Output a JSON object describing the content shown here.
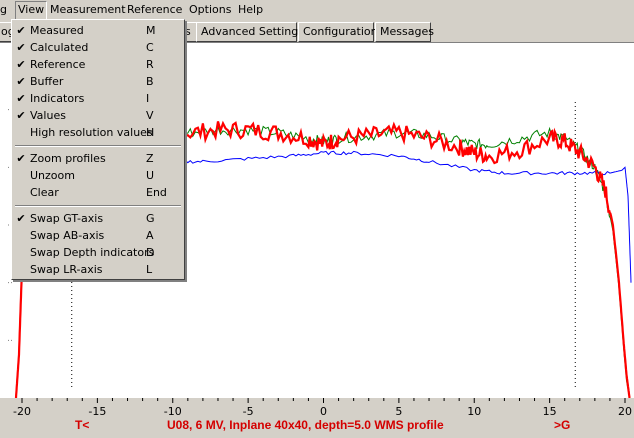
{
  "menubar": {
    "items": [
      {
        "label": "g"
      },
      {
        "label": "View"
      },
      {
        "label": "Measurement"
      },
      {
        "label": "Reference"
      },
      {
        "label": "Options"
      },
      {
        "label": "Help"
      }
    ]
  },
  "tabs": [
    {
      "label": "ogr"
    },
    {
      "label": "s"
    },
    {
      "label": "Advanced Settings"
    },
    {
      "label": "Configuration"
    },
    {
      "label": "Messages"
    }
  ],
  "view_menu": {
    "items": [
      {
        "label": "Measured",
        "shortcut": "M",
        "checked": true
      },
      {
        "label": "Calculated",
        "shortcut": "C",
        "checked": true
      },
      {
        "label": "Reference",
        "shortcut": "R",
        "checked": true
      },
      {
        "label": "Buffer",
        "shortcut": "B",
        "checked": true
      },
      {
        "label": "Indicators",
        "shortcut": "I",
        "checked": true
      },
      {
        "label": "Values",
        "shortcut": "V",
        "checked": true
      },
      {
        "label": "High resolution values",
        "shortcut": "H",
        "checked": false
      },
      {
        "label": "Zoom profiles",
        "shortcut": "Z",
        "checked": true
      },
      {
        "label": "Unzoom",
        "shortcut": "U",
        "checked": false
      },
      {
        "label": "Clear",
        "shortcut": "End",
        "checked": false
      },
      {
        "label": "Swap GT-axis",
        "shortcut": "G",
        "checked": true
      },
      {
        "label": "Swap AB-axis",
        "shortcut": "A",
        "checked": false
      },
      {
        "label": "Swap Depth indicators",
        "shortcut": "D",
        "checked": false
      },
      {
        "label": "Swap LR-axis",
        "shortcut": "L",
        "checked": false
      }
    ],
    "check_glyph": "✔"
  },
  "chart_data": {
    "type": "line",
    "x_ticks": [
      "-20",
      "-15",
      "-10",
      "-5",
      "0",
      "5",
      "10",
      "15",
      "20"
    ],
    "xlim": [
      -20,
      20
    ],
    "ylim": [
      0,
      120
    ],
    "left_marker": "T<",
    "right_marker": ">G",
    "caption": "U08, 6 MV, Inplane 40x40, depth=5.0 WMS profile",
    "series": [
      {
        "color": "#ff0000",
        "x": [
          -20.4,
          -20.2,
          -20.0,
          -19.8,
          -19.6,
          -19.3,
          -19.0,
          -18.5,
          -18.0,
          -17.0,
          -15.0,
          -13.0,
          -11.0,
          -9.0,
          -7.0,
          -5.0,
          -3.0,
          -1.0,
          0.0,
          1.0,
          3.0,
          5.0,
          7.0,
          9.0,
          10.0,
          11.0,
          13.0,
          15.0,
          16.0,
          17.0,
          18.0,
          18.7,
          19.2,
          19.6,
          19.9,
          20.1,
          20.3
        ],
        "y": [
          0,
          15,
          45,
          65,
          75,
          80,
          83,
          85,
          86,
          88,
          89,
          90,
          91,
          92,
          93,
          93,
          92,
          90,
          88,
          90,
          91,
          92,
          90,
          87,
          85,
          84,
          86,
          90,
          89,
          85,
          80,
          72,
          60,
          40,
          20,
          8,
          0
        ]
      },
      {
        "color": "#008000",
        "x": [
          -20.4,
          -20.2,
          -20.0,
          -19.8,
          -19.6,
          -19.3,
          -19.0,
          -18.5,
          -18.0,
          -17.0,
          -15.0,
          -13.0,
          -11.0,
          -9.0,
          -7.0,
          -5.0,
          -3.0,
          -1.0,
          0.0,
          1.0,
          3.0,
          5.0,
          7.0,
          9.0,
          10.0,
          11.0,
          13.0,
          15.0,
          16.0,
          17.0,
          18.0,
          18.7,
          19.2,
          19.6,
          19.9,
          20.1,
          20.3
        ],
        "y": [
          0,
          15,
          45,
          66,
          76,
          81,
          83,
          85,
          86,
          88,
          89,
          90,
          91,
          92,
          93,
          93,
          92,
          90,
          89,
          90,
          91,
          92,
          91,
          89,
          88,
          88,
          90,
          92,
          90,
          86,
          80,
          71,
          58,
          38,
          18,
          6,
          0
        ]
      },
      {
        "color": "#0000ff",
        "x": [
          -20.4,
          -20.2,
          -20.0,
          -19.8,
          -18.0,
          -15.0,
          -12.0,
          -10.0,
          -8.0,
          -5.0,
          -2.0,
          0.0,
          2.0,
          5.0,
          7.0,
          10.0,
          12.0,
          15.0,
          17.0,
          19.0,
          19.8,
          20.0,
          20.2,
          20.4
        ],
        "y": [
          130,
          100,
          85,
          82,
          82,
          82,
          82,
          82,
          82,
          83,
          84,
          85,
          85,
          84,
          82,
          79,
          78,
          78,
          78,
          78,
          79,
          80,
          70,
          40
        ]
      }
    ]
  }
}
